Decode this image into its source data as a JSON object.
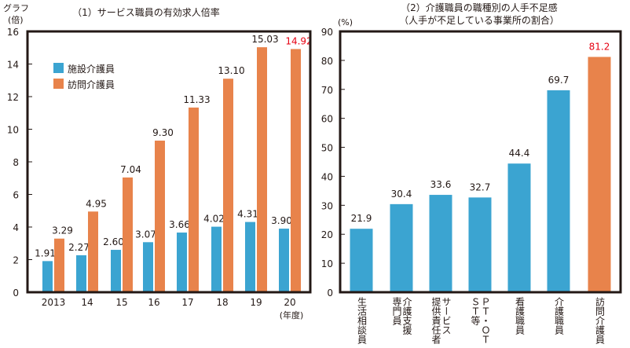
{
  "chart_data": [
    {
      "type": "bar",
      "title": "（1）サービス職員の有効求人倍率",
      "ylabel": "グラフ\n(倍)",
      "ylabel_lines": [
        "グラフ",
        "(倍)"
      ],
      "xunit": "(年度)",
      "categories": [
        "2013",
        "14",
        "15",
        "16",
        "17",
        "18",
        "19",
        "20"
      ],
      "ylim": [
        0,
        16
      ],
      "yticks": [
        "0",
        "2",
        "4",
        "6",
        "8",
        "10",
        "12",
        "14",
        "16"
      ],
      "legend": "top-left",
      "series": [
        {
          "name": "施設介護員",
          "color": "#3ba4d1",
          "values": [
            1.91,
            2.27,
            2.6,
            3.07,
            3.66,
            4.02,
            4.31,
            3.9
          ],
          "labels": [
            "1.91",
            "2.27",
            "2.60",
            "3.07",
            "3.66",
            "4.02",
            "4.31",
            "3.90"
          ]
        },
        {
          "name": "訪問介護員",
          "color": "#e8834b",
          "values": [
            3.29,
            4.95,
            7.04,
            9.3,
            11.33,
            13.1,
            15.03,
            14.92
          ],
          "labels": [
            "3.29",
            "4.95",
            "7.04",
            "9.30",
            "11.33",
            "13.10",
            "15.03",
            "14.92"
          ],
          "highlight_last_color": "#e60012"
        }
      ]
    },
    {
      "type": "bar",
      "title": "（2）介護職員の職種別の人手不足感",
      "subtitle": "（人手が不足している事業所の割合）",
      "ylabel": "(%)",
      "ylim": [
        0,
        90
      ],
      "yticks": [
        "0",
        "10",
        "20",
        "30",
        "40",
        "50",
        "60",
        "70",
        "80",
        "90"
      ],
      "categories": [
        "生活相談員",
        "介護支援\n専門員",
        "サービス\n提供責任者",
        "ＰＴ・ＯＴ・\nＳＴ等",
        "看護職員",
        "介護職員",
        "訪問介護員"
      ],
      "values": [
        21.9,
        30.4,
        33.6,
        32.7,
        44.4,
        69.7,
        81.2
      ],
      "labels": [
        "21.9",
        "30.4",
        "33.6",
        "32.7",
        "44.4",
        "69.7",
        "81.2"
      ],
      "colors": [
        "#3ba4d1",
        "#3ba4d1",
        "#3ba4d1",
        "#3ba4d1",
        "#3ba4d1",
        "#3ba4d1",
        "#e8834b"
      ],
      "label_colors": [
        "#231815",
        "#231815",
        "#231815",
        "#231815",
        "#231815",
        "#231815",
        "#e60012"
      ]
    }
  ]
}
